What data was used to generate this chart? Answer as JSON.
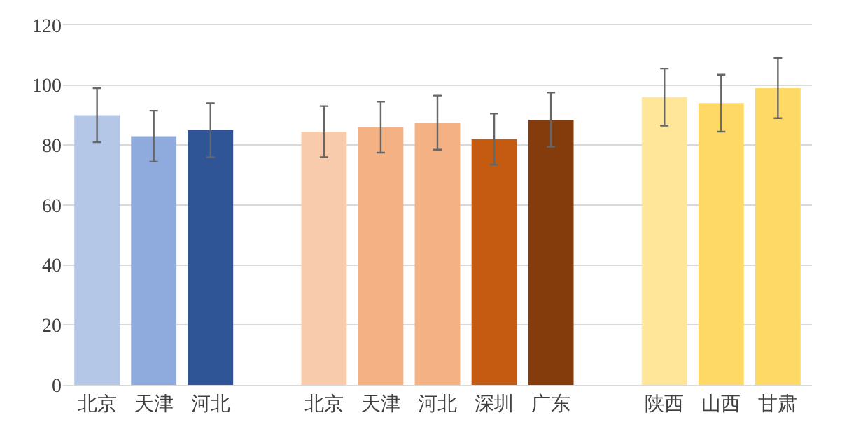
{
  "chart_data": {
    "type": "bar",
    "categories": [
      "北京",
      "天津",
      "河北",
      null,
      "北京",
      "天津",
      "河北",
      "深圳",
      "广东",
      null,
      "陕西",
      "山西",
      "甘肃"
    ],
    "values": [
      90,
      83,
      85,
      null,
      84.5,
      86,
      87.5,
      82,
      88.5,
      null,
      96,
      94,
      99
    ],
    "errors": [
      9,
      8.5,
      9,
      null,
      8.5,
      8.5,
      9,
      8.5,
      9,
      null,
      9.5,
      9.5,
      10
    ],
    "colors": [
      "#b4c7e7",
      "#8faadc",
      "#2f5597",
      "#ffffff",
      "#f8cbad",
      "#f4b183",
      "#f4b183",
      "#c55a11",
      "#843c0c",
      "#ffffff",
      "#ffe699",
      "#ffd966",
      "#ffd966"
    ],
    "ylim": [
      0,
      120
    ],
    "yticks": [
      0,
      20,
      40,
      60,
      80,
      100,
      120
    ],
    "grid": "y"
  }
}
